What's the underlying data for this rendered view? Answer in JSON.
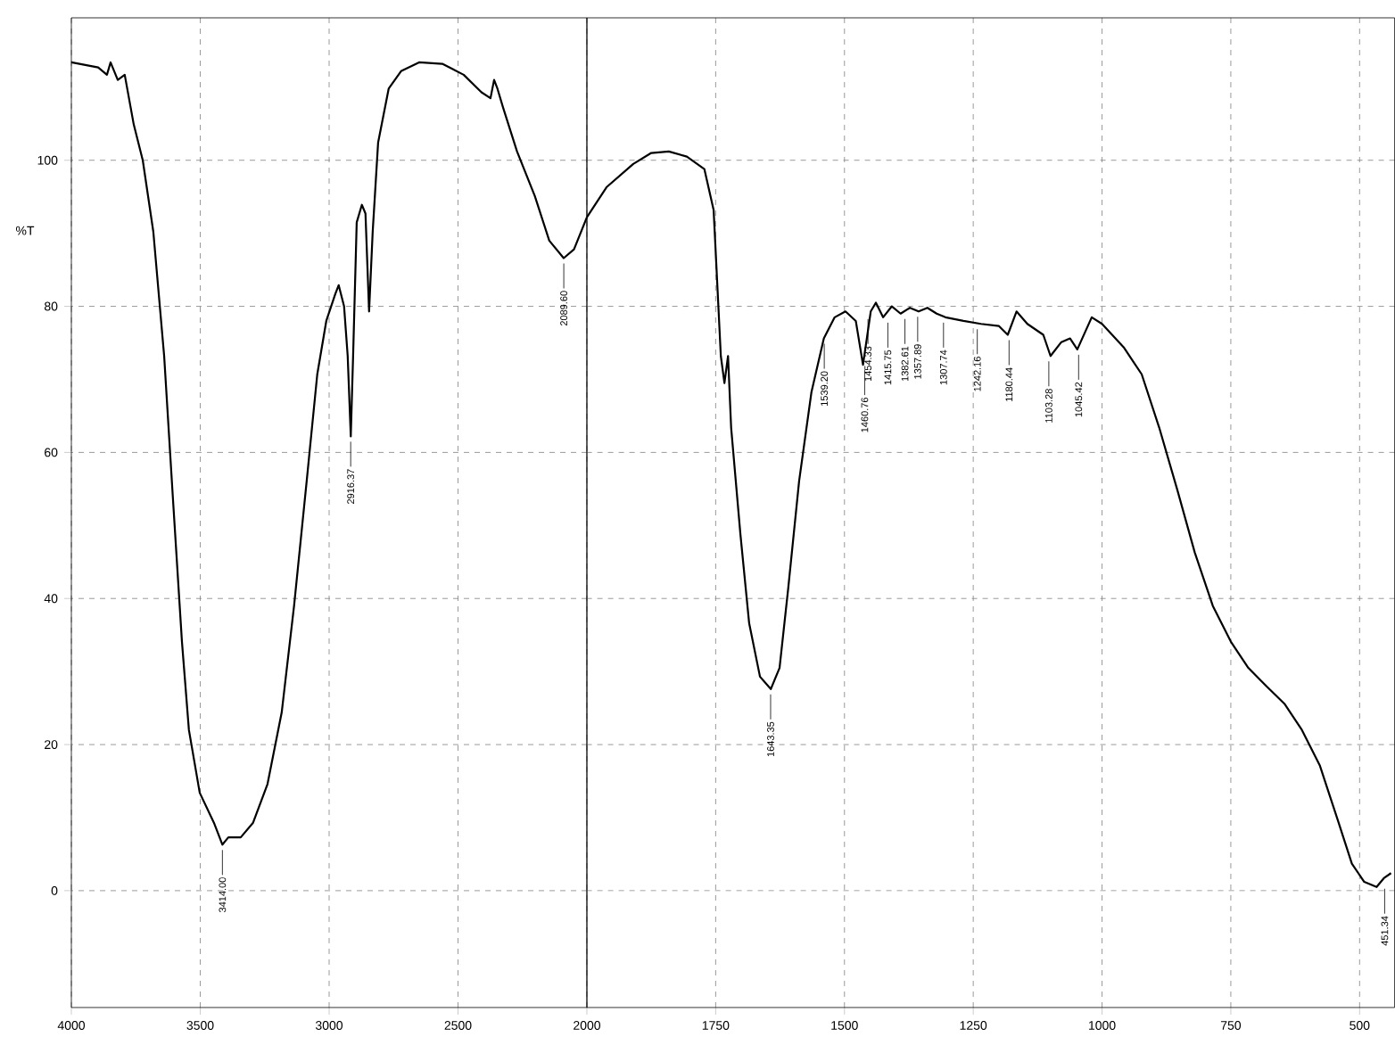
{
  "chart_data": [
    {
      "type": "line",
      "ylabel": "%T",
      "xlim": [
        4000,
        2000
      ],
      "ylim": [
        -16,
        119.5
      ],
      "xticks": [
        4000,
        3500,
        3000,
        2500,
        2000
      ],
      "yticks": [
        0,
        20,
        40,
        60,
        80,
        100
      ],
      "grid": true,
      "marker": "none",
      "line_style": "solid",
      "series": [
        {
          "color": "#000000",
          "x": [
            4000,
            3896,
            3862,
            3848,
            3820,
            3793,
            3758,
            3723,
            3682,
            3640,
            3606,
            3571,
            3544,
            3502,
            3447,
            3414,
            3391,
            3343,
            3295,
            3239,
            3184,
            3136,
            3087,
            3046,
            3011,
            2976,
            2963,
            2942,
            2928,
            2916,
            2907,
            2893,
            2873,
            2859,
            2845,
            2831,
            2810,
            2769,
            2721,
            2651,
            2561,
            2478,
            2409,
            2374,
            2360,
            2347,
            2326,
            2271,
            2202,
            2146,
            2090,
            2050,
            2000
          ],
          "values": [
            113.4,
            112.7,
            111.7,
            113.4,
            111.0,
            111.7,
            104.9,
            100,
            90.2,
            73.2,
            53.7,
            34.1,
            22.0,
            13.4,
            9.3,
            6.3,
            7.3,
            7.3,
            9.3,
            14.6,
            24.4,
            39.0,
            56.1,
            70.7,
            78.0,
            81.7,
            82.9,
            80,
            73.2,
            62.2,
            73.2,
            91.5,
            93.9,
            92.7,
            79.3,
            90.2,
            102.4,
            109.8,
            112.2,
            113.4,
            113.2,
            111.7,
            109.3,
            108.5,
            111.0,
            109.8,
            107.3,
            101.2,
            95.1,
            89.0,
            86.6,
            87.8,
            92.2
          ]
        }
      ],
      "annotations": [
        {
          "text": "3414.00",
          "x": 3414,
          "y": 6.3
        },
        {
          "text": "2916.37",
          "x": 2916.37,
          "y": 62.2
        },
        {
          "text": "2089.60",
          "x": 2089.6,
          "y": 86.6
        }
      ]
    },
    {
      "type": "line",
      "xlim": [
        2000,
        432
      ],
      "ylim": [
        -16,
        119.5
      ],
      "xticks": [
        1750,
        1500,
        1250,
        1000,
        750,
        500
      ],
      "yticks": [
        0,
        20,
        40,
        60,
        80,
        100
      ],
      "grid": true,
      "marker": "none",
      "line_style": "solid",
      "tick_labels": "x",
      "series": [
        {
          "color": "#000000",
          "x": [
            2000,
            1962,
            1910,
            1875,
            1841,
            1806,
            1772,
            1754,
            1740,
            1733,
            1726,
            1720,
            1702,
            1685,
            1664,
            1643,
            1626,
            1609,
            1588,
            1564,
            1540,
            1519,
            1498,
            1478,
            1464,
            1449,
            1439,
            1425,
            1408,
            1391,
            1373,
            1356,
            1339,
            1321,
            1304,
            1269,
            1235,
            1200,
            1183,
            1166,
            1145,
            1114,
            1100,
            1079,
            1062,
            1048,
            1020,
            1000,
            958,
            923,
            889,
            854,
            820,
            785,
            750,
            716,
            681,
            646,
            612,
            577,
            543,
            515,
            491,
            467,
            453,
            439
          ],
          "values": [
            92.2,
            96.3,
            99.5,
            101,
            101.2,
            100.5,
            98.8,
            93.2,
            73.2,
            69.5,
            73.2,
            63.4,
            48.8,
            36.6,
            29.3,
            27.6,
            30.5,
            41.5,
            56.1,
            68.3,
            75.6,
            78.5,
            79.3,
            78,
            72,
            79.3,
            80.5,
            78.5,
            80,
            79,
            79.8,
            79.3,
            79.8,
            79,
            78.5,
            78,
            77.6,
            77.3,
            76.1,
            79.3,
            77.6,
            76.1,
            73.2,
            75.1,
            75.6,
            74.1,
            78.5,
            77.6,
            74.4,
            70.7,
            63.4,
            54.9,
            46.3,
            39.0,
            34.1,
            30.5,
            28.0,
            25.6,
            22.0,
            17.1,
            9.8,
            3.7,
            1.2,
            0.5,
            1.7,
            2.4
          ]
        }
      ],
      "annotations": [
        {
          "text": "1643.35",
          "x": 1643.35,
          "y": 27.6
        },
        {
          "text": "1539.20",
          "x": 1539.2,
          "y": 75.6
        },
        {
          "text": "1460.76",
          "x": 1460.76,
          "y": 72
        },
        {
          "text": "1454.33",
          "x": 1454.33,
          "y": 79
        },
        {
          "text": "1415.75",
          "x": 1415.75,
          "y": 78.5
        },
        {
          "text": "1382.61",
          "x": 1382.61,
          "y": 79
        },
        {
          "text": "1357.89",
          "x": 1357.89,
          "y": 79.3
        },
        {
          "text": "1307.74",
          "x": 1307.74,
          "y": 78.5
        },
        {
          "text": "1242.16",
          "x": 1242.16,
          "y": 77.6
        },
        {
          "text": "1180.44",
          "x": 1180.44,
          "y": 76.1
        },
        {
          "text": "1103.28",
          "x": 1103.28,
          "y": 73.2
        },
        {
          "text": "1045.42",
          "x": 1045.42,
          "y": 74.1
        },
        {
          "text": "451.34",
          "x": 451.34,
          "y": 1.0
        }
      ]
    }
  ]
}
